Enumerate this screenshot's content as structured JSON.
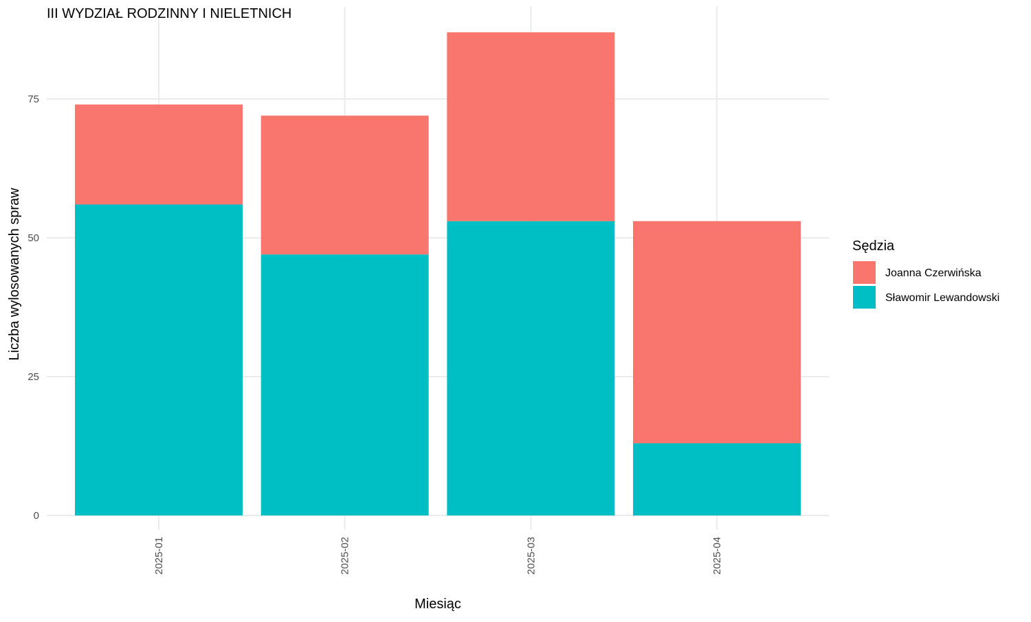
{
  "chart_data": {
    "type": "bar",
    "stacked": true,
    "title": "III WYDZIAŁ RODZINNY I NIELETNICH",
    "xlabel": "Miesiąc",
    "ylabel": "Liczba wylosowanych spraw",
    "categories": [
      "2025-01",
      "2025-02",
      "2025-03",
      "2025-04"
    ],
    "series": [
      {
        "name": "Sławomir Lewandowski",
        "values": [
          56,
          47,
          53,
          13
        ],
        "color": "#00bfc4"
      },
      {
        "name": "Joanna Czerwińska",
        "values": [
          18,
          25,
          34,
          40
        ],
        "color": "#f8766d"
      }
    ],
    "ylim": [
      0,
      90
    ],
    "yticks": [
      0,
      25,
      50,
      75
    ],
    "grid": true,
    "legend": {
      "title": "Sędzia",
      "position": "right",
      "order": [
        "Joanna Czerwińska",
        "Sławomir Lewandowski"
      ]
    }
  }
}
